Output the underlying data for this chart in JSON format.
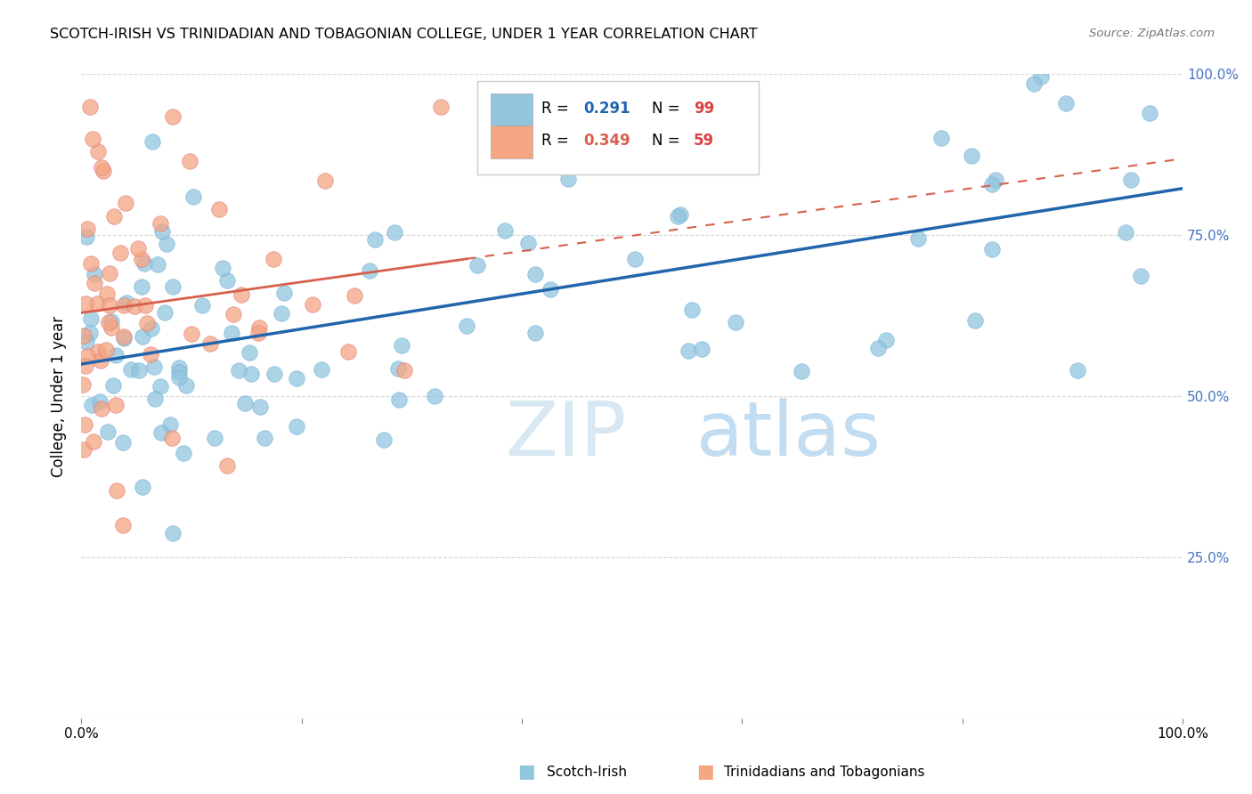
{
  "title": "SCOTCH-IRISH VS TRINIDADIAN AND TOBAGONIAN COLLEGE, UNDER 1 YEAR CORRELATION CHART",
  "source": "Source: ZipAtlas.com",
  "ylabel": "College, Under 1 year",
  "legend_blue_label": "Scotch-Irish",
  "legend_pink_label": "Trinidadians and Tobagonians",
  "blue_color": "#92c5de",
  "blue_color_edge": "#6baed6",
  "pink_color": "#f4a582",
  "pink_color_edge": "#e07070",
  "blue_line_color": "#2166ac",
  "pink_line_color": "#d6604d",
  "watermark_zip": "ZIP",
  "watermark_atlas": "atlas",
  "blue_r": "0.291",
  "blue_n": "99",
  "pink_r": "0.349",
  "pink_n": "59",
  "r_color": "#2166ac",
  "n_color": "#e04040",
  "pink_r_color": "#d6604d"
}
